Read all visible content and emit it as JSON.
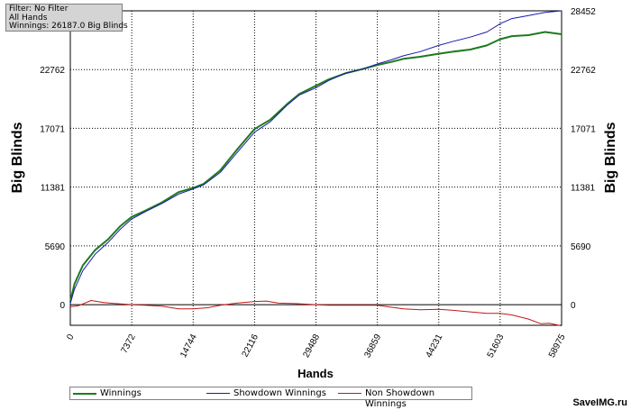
{
  "filter_box": {
    "line1": "Filter: No Filter",
    "line2": "All Hands",
    "line3": "Winnings: 26187.0 Big Blinds"
  },
  "watermark": "SaveIMG.ru",
  "colors": {
    "winnings": "#1e7a1e",
    "showdown": "#1a1ab0",
    "non_showdown": "#c01818",
    "zero_line": "#000000",
    "grid": "#000000"
  },
  "chart_data": {
    "type": "line",
    "xlabel": "Hands",
    "ylabel_left": "Big Blinds",
    "ylabel_right": "Big Blinds",
    "xlim": [
      0,
      58975
    ],
    "ylim": [
      -2000,
      28452
    ],
    "x_ticks": [
      0,
      7372,
      14744,
      22116,
      29488,
      36859,
      44231,
      51603,
      58975
    ],
    "y_ticks": [
      0,
      5690,
      11381,
      17071,
      22762,
      28452
    ],
    "grid": true,
    "legend_position": "bottom",
    "series": [
      {
        "name": "Winnings",
        "points": [
          [
            0,
            300
          ],
          [
            500,
            2000
          ],
          [
            1500,
            3800
          ],
          [
            3000,
            5300
          ],
          [
            4500,
            6300
          ],
          [
            6000,
            7600
          ],
          [
            7372,
            8500
          ],
          [
            9000,
            9100
          ],
          [
            11000,
            9900
          ],
          [
            13000,
            10900
          ],
          [
            14744,
            11300
          ],
          [
            16000,
            11700
          ],
          [
            18000,
            13000
          ],
          [
            20000,
            15000
          ],
          [
            22116,
            17000
          ],
          [
            24000,
            17900
          ],
          [
            26000,
            19400
          ],
          [
            27500,
            20400
          ],
          [
            29488,
            21200
          ],
          [
            31000,
            21800
          ],
          [
            33000,
            22400
          ],
          [
            35000,
            22800
          ],
          [
            36859,
            23200
          ],
          [
            38500,
            23500
          ],
          [
            40000,
            23800
          ],
          [
            42000,
            24000
          ],
          [
            44231,
            24300
          ],
          [
            46000,
            24500
          ],
          [
            48000,
            24700
          ],
          [
            50000,
            25100
          ],
          [
            51603,
            25700
          ],
          [
            53000,
            26000
          ],
          [
            55000,
            26100
          ],
          [
            57000,
            26400
          ],
          [
            58975,
            26187
          ]
        ]
      },
      {
        "name": "Showdown Winnings",
        "points": [
          [
            0,
            100
          ],
          [
            500,
            1500
          ],
          [
            1500,
            3300
          ],
          [
            3000,
            4900
          ],
          [
            4500,
            6000
          ],
          [
            6000,
            7300
          ],
          [
            7372,
            8300
          ],
          [
            9000,
            9000
          ],
          [
            11000,
            9800
          ],
          [
            13000,
            10700
          ],
          [
            14744,
            11200
          ],
          [
            16000,
            11600
          ],
          [
            18000,
            12800
          ],
          [
            20000,
            14700
          ],
          [
            22116,
            16700
          ],
          [
            24000,
            17700
          ],
          [
            26000,
            19300
          ],
          [
            27500,
            20300
          ],
          [
            29488,
            21000
          ],
          [
            31000,
            21700
          ],
          [
            33000,
            22400
          ],
          [
            35000,
            22800
          ],
          [
            36859,
            23300
          ],
          [
            38500,
            23700
          ],
          [
            40000,
            24100
          ],
          [
            42000,
            24500
          ],
          [
            44231,
            25100
          ],
          [
            46000,
            25500
          ],
          [
            48000,
            25900
          ],
          [
            50000,
            26400
          ],
          [
            51603,
            27200
          ],
          [
            53000,
            27700
          ],
          [
            55000,
            28000
          ],
          [
            57000,
            28300
          ],
          [
            58975,
            28452
          ]
        ]
      },
      {
        "name": "Non Showdown Winnings",
        "points": [
          [
            0,
            -200
          ],
          [
            1000,
            -100
          ],
          [
            2500,
            400
          ],
          [
            4000,
            200
          ],
          [
            5500,
            100
          ],
          [
            7372,
            0
          ],
          [
            9000,
            -50
          ],
          [
            11000,
            -150
          ],
          [
            13000,
            -400
          ],
          [
            14744,
            -400
          ],
          [
            16500,
            -300
          ],
          [
            18000,
            -50
          ],
          [
            20000,
            150
          ],
          [
            22116,
            300
          ],
          [
            23500,
            350
          ],
          [
            25000,
            150
          ],
          [
            27000,
            100
          ],
          [
            29488,
            0
          ],
          [
            31000,
            -50
          ],
          [
            33000,
            -50
          ],
          [
            35000,
            -50
          ],
          [
            36859,
            -50
          ],
          [
            38500,
            -250
          ],
          [
            40000,
            -400
          ],
          [
            42000,
            -500
          ],
          [
            44231,
            -450
          ],
          [
            46000,
            -550
          ],
          [
            48000,
            -700
          ],
          [
            50000,
            -850
          ],
          [
            51603,
            -850
          ],
          [
            53000,
            -1000
          ],
          [
            55000,
            -1400
          ],
          [
            56500,
            -1850
          ],
          [
            57500,
            -1800
          ],
          [
            58975,
            -2050
          ]
        ]
      }
    ]
  }
}
